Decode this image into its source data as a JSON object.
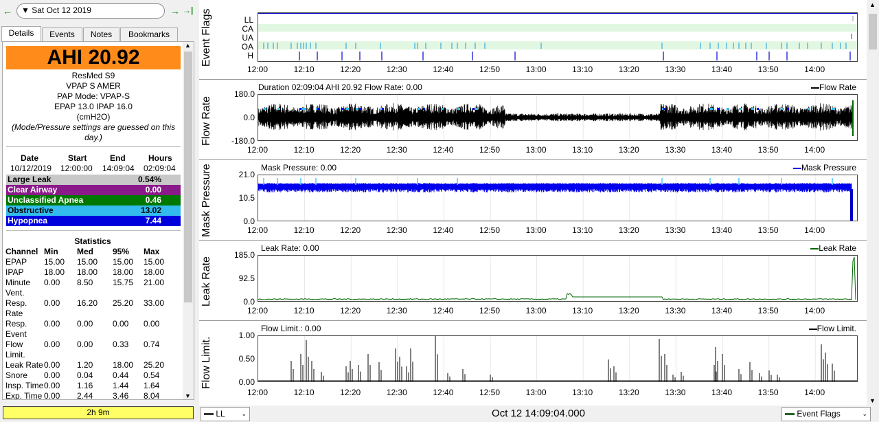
{
  "nav": {
    "back_icon": "←",
    "forward_icon": "→",
    "last_icon": "→|",
    "date": "Sat Oct 12 2019",
    "dropdown_icon": "▼"
  },
  "tabs": [
    {
      "label": "Details"
    },
    {
      "label": "Events"
    },
    {
      "label": "Notes"
    },
    {
      "label": "Bookmarks"
    }
  ],
  "summary": {
    "ahi": "AHI 20.92",
    "device": "ResMed S9",
    "model": "VPAP S AMER",
    "mode": "PAP Mode: VPAP-S",
    "pressure": "EPAP 13.0 IPAP 16.0",
    "unit": "(cmH2O)",
    "note": "(Mode/Pressure settings are guessed on this day.)",
    "headers": {
      "date": "Date",
      "start": "Start",
      "end": "End",
      "hours": "Hours"
    },
    "values": {
      "date": "10/12/2019",
      "start": "12:00:00",
      "end": "14:09:04",
      "hours": "02:09:04"
    },
    "events": [
      {
        "label": "Large Leak",
        "value": "0.54%",
        "color": "#c8c8c8",
        "text": "#000"
      },
      {
        "label": "Clear Airway",
        "value": "0.00",
        "color": "#8a1a8a",
        "text": "#fff"
      },
      {
        "label": "Unclassified Apnea",
        "value": "0.46",
        "color": "#007700",
        "text": "#fff"
      },
      {
        "label": "Obstructive",
        "value": "13.02",
        "color": "#33bbee",
        "text": "#000"
      },
      {
        "label": "Hypopnea",
        "value": "7.44",
        "color": "#0000dd",
        "text": "#fff"
      }
    ]
  },
  "statistics": {
    "title": "Statistics",
    "columns": [
      "Channel",
      "Min",
      "Med",
      "95%",
      "Max"
    ],
    "rows": [
      {
        "ch": "EPAP",
        "ch2": "",
        "min": "15.00",
        "med": "15.00",
        "p95": "15.00",
        "max": "15.00"
      },
      {
        "ch": "IPAP",
        "ch2": "",
        "min": "18.00",
        "med": "18.00",
        "p95": "18.00",
        "max": "18.00"
      },
      {
        "ch": "Minute",
        "ch2": "Vent.",
        "min": "0.00",
        "med": "8.50",
        "p95": "15.75",
        "max": "21.00"
      },
      {
        "ch": "Resp.",
        "ch2": "Rate",
        "min": "0.00",
        "med": "16.20",
        "p95": "25.20",
        "max": "33.00"
      },
      {
        "ch": "Resp.",
        "ch2": "Event",
        "min": "0.00",
        "med": "0.00",
        "p95": "0.00",
        "max": "0.00"
      },
      {
        "ch": "Flow",
        "ch2": "Limit.",
        "min": "0.00",
        "med": "0.00",
        "p95": "0.33",
        "max": "0.74"
      },
      {
        "ch": "Leak Rate",
        "ch2": "",
        "min": "0.00",
        "med": "1.20",
        "p95": "18.00",
        "max": "25.20"
      },
      {
        "ch": "Snore",
        "ch2": "",
        "min": "0.00",
        "med": "0.04",
        "p95": "0.44",
        "max": "0.54"
      },
      {
        "ch": "Insp. Time",
        "ch2": "",
        "min": "0.00",
        "med": "1.16",
        "p95": "1.44",
        "max": "1.64"
      },
      {
        "ch": "Exp. Time",
        "ch2": "",
        "min": "0.00",
        "med": "2.44",
        "p95": "3.46",
        "max": "8.04"
      }
    ]
  },
  "duration": "2h 9m",
  "x_ticks": [
    "12:00",
    "12:10",
    "12:20",
    "12:30",
    "12:40",
    "12:50",
    "13:00",
    "13:10",
    "13:20",
    "13:30",
    "13:40",
    "13:50",
    "14:00"
  ],
  "graphs": {
    "flags": {
      "title": "Event Flags",
      "rows": [
        "LL",
        "CA",
        "UA",
        "OA",
        "H"
      ]
    },
    "flow": {
      "title": "Flow Rate",
      "caption": "Duration 02:09:04 AHI 20.92 Flow Rate: 0.00",
      "legend": "Flow Rate",
      "yticks": [
        "180.0",
        "0.0",
        "-180.0"
      ],
      "color": "#000000"
    },
    "mask": {
      "title": "Mask Pressure",
      "caption": "Mask Pressure: 0.00",
      "legend": "Mask Pressure",
      "yticks": [
        "21.0",
        "10.5",
        "0.0"
      ],
      "color": "#0000ee"
    },
    "leak": {
      "title": "Leak Rate",
      "caption": "Leak Rate: 0.00",
      "legend": "Leak Rate",
      "yticks": [
        "185.0",
        "92.5",
        "0.0"
      ],
      "color": "#006600"
    },
    "flowlimit": {
      "title": "Flow Limit.",
      "caption": "Flow Limit.: 0.00",
      "legend": "Flow Limit.",
      "yticks": [
        "1.00",
        "0.50",
        "0.00"
      ],
      "color": "#000000"
    }
  },
  "chart_data": [
    {
      "type": "scatter",
      "title": "Event Flags",
      "categories": [
        "LL",
        "CA",
        "UA",
        "OA",
        "H"
      ],
      "xlim": [
        "12:00",
        "14:09"
      ]
    },
    {
      "type": "line",
      "title": "Flow Rate",
      "ylim": [
        -180,
        180
      ],
      "xlim": [
        "12:00",
        "14:09"
      ],
      "series": [
        {
          "name": "Flow Rate"
        }
      ]
    },
    {
      "type": "line",
      "title": "Mask Pressure",
      "ylim": [
        0,
        21
      ],
      "xlim": [
        "12:00",
        "14:09"
      ],
      "series": [
        {
          "name": "Mask Pressure"
        }
      ]
    },
    {
      "type": "line",
      "title": "Leak Rate",
      "ylim": [
        0,
        185
      ],
      "xlim": [
        "12:00",
        "14:09"
      ],
      "series": [
        {
          "name": "Leak Rate"
        }
      ]
    },
    {
      "type": "line",
      "title": "Flow Limit.",
      "ylim": [
        0,
        1
      ],
      "xlim": [
        "12:00",
        "14:09"
      ],
      "series": [
        {
          "name": "Flow Limit."
        }
      ]
    }
  ],
  "bottom": {
    "channel_select": "LL",
    "timestamp": "Oct 12 14:09:04.000",
    "event_select": "Event Flags"
  }
}
